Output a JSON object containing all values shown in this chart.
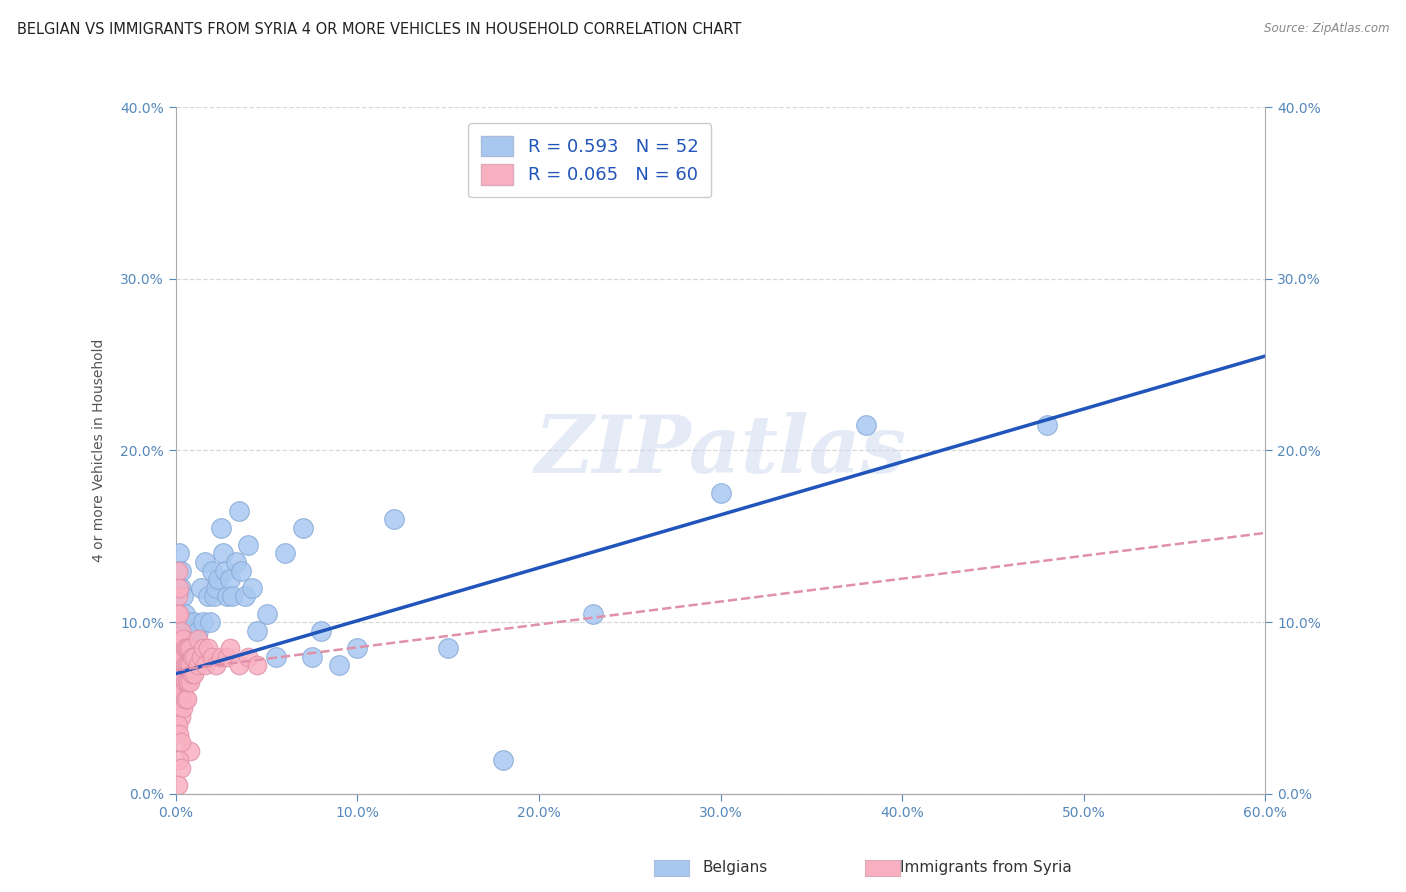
{
  "title": "BELGIAN VS IMMIGRANTS FROM SYRIA 4 OR MORE VEHICLES IN HOUSEHOLD CORRELATION CHART",
  "source": "Source: ZipAtlas.com",
  "ylabel_label": "4 or more Vehicles in Household",
  "xlabel_belgians": "Belgians",
  "xlabel_syria": "Immigrants from Syria",
  "xmin": 0.0,
  "xmax": 0.6,
  "ymin": 0.0,
  "ymax": 0.4,
  "belgian_R": 0.593,
  "belgian_N": 52,
  "syria_R": 0.065,
  "syria_N": 60,
  "belgian_color": "#a8c8f0",
  "syria_color": "#f8b0c0",
  "regression_blue": "#2255bb",
  "regression_pink": "#e090a8",
  "watermark_text": "ZIPatlas",
  "grid_color": "#d8d8d8",
  "background_color": "#ffffff",
  "title_fontsize": 10.5,
  "axis_label_fontsize": 10,
  "tick_fontsize": 10,
  "legend_fontsize": 13,
  "tick_color": "#5588bb",
  "belgian_points": [
    [
      0.002,
      0.14
    ],
    [
      0.003,
      0.13
    ],
    [
      0.003,
      0.12
    ],
    [
      0.004,
      0.115
    ],
    [
      0.005,
      0.105
    ],
    [
      0.005,
      0.095
    ],
    [
      0.006,
      0.1
    ],
    [
      0.007,
      0.09
    ],
    [
      0.007,
      0.085
    ],
    [
      0.008,
      0.095
    ],
    [
      0.008,
      0.085
    ],
    [
      0.009,
      0.09
    ],
    [
      0.01,
      0.1
    ],
    [
      0.01,
      0.085
    ],
    [
      0.012,
      0.095
    ],
    [
      0.014,
      0.12
    ],
    [
      0.015,
      0.1
    ],
    [
      0.016,
      0.135
    ],
    [
      0.018,
      0.115
    ],
    [
      0.019,
      0.1
    ],
    [
      0.02,
      0.13
    ],
    [
      0.021,
      0.115
    ],
    [
      0.022,
      0.12
    ],
    [
      0.023,
      0.125
    ],
    [
      0.025,
      0.155
    ],
    [
      0.026,
      0.14
    ],
    [
      0.027,
      0.13
    ],
    [
      0.028,
      0.115
    ],
    [
      0.03,
      0.125
    ],
    [
      0.031,
      0.115
    ],
    [
      0.033,
      0.135
    ],
    [
      0.035,
      0.165
    ],
    [
      0.036,
      0.13
    ],
    [
      0.038,
      0.115
    ],
    [
      0.04,
      0.145
    ],
    [
      0.042,
      0.12
    ],
    [
      0.045,
      0.095
    ],
    [
      0.05,
      0.105
    ],
    [
      0.055,
      0.08
    ],
    [
      0.06,
      0.14
    ],
    [
      0.07,
      0.155
    ],
    [
      0.075,
      0.08
    ],
    [
      0.08,
      0.095
    ],
    [
      0.09,
      0.075
    ],
    [
      0.1,
      0.085
    ],
    [
      0.12,
      0.16
    ],
    [
      0.15,
      0.085
    ],
    [
      0.18,
      0.02
    ],
    [
      0.23,
      0.105
    ],
    [
      0.3,
      0.175
    ],
    [
      0.38,
      0.215
    ],
    [
      0.48,
      0.215
    ]
  ],
  "syria_points": [
    [
      0.001,
      0.13
    ],
    [
      0.001,
      0.115
    ],
    [
      0.001,
      0.105
    ],
    [
      0.002,
      0.12
    ],
    [
      0.002,
      0.105
    ],
    [
      0.002,
      0.09
    ],
    [
      0.002,
      0.08
    ],
    [
      0.002,
      0.07
    ],
    [
      0.002,
      0.06
    ],
    [
      0.002,
      0.05
    ],
    [
      0.003,
      0.095
    ],
    [
      0.003,
      0.085
    ],
    [
      0.003,
      0.075
    ],
    [
      0.003,
      0.065
    ],
    [
      0.003,
      0.055
    ],
    [
      0.003,
      0.045
    ],
    [
      0.004,
      0.09
    ],
    [
      0.004,
      0.08
    ],
    [
      0.004,
      0.07
    ],
    [
      0.004,
      0.06
    ],
    [
      0.004,
      0.05
    ],
    [
      0.005,
      0.085
    ],
    [
      0.005,
      0.075
    ],
    [
      0.005,
      0.065
    ],
    [
      0.005,
      0.055
    ],
    [
      0.006,
      0.085
    ],
    [
      0.006,
      0.075
    ],
    [
      0.006,
      0.065
    ],
    [
      0.006,
      0.055
    ],
    [
      0.007,
      0.085
    ],
    [
      0.007,
      0.075
    ],
    [
      0.007,
      0.065
    ],
    [
      0.008,
      0.085
    ],
    [
      0.008,
      0.075
    ],
    [
      0.008,
      0.065
    ],
    [
      0.008,
      0.025
    ],
    [
      0.009,
      0.08
    ],
    [
      0.009,
      0.07
    ],
    [
      0.01,
      0.08
    ],
    [
      0.01,
      0.07
    ],
    [
      0.012,
      0.09
    ],
    [
      0.012,
      0.075
    ],
    [
      0.014,
      0.08
    ],
    [
      0.015,
      0.085
    ],
    [
      0.016,
      0.075
    ],
    [
      0.018,
      0.085
    ],
    [
      0.02,
      0.08
    ],
    [
      0.022,
      0.075
    ],
    [
      0.025,
      0.08
    ],
    [
      0.028,
      0.08
    ],
    [
      0.03,
      0.085
    ],
    [
      0.035,
      0.075
    ],
    [
      0.04,
      0.08
    ],
    [
      0.045,
      0.075
    ],
    [
      0.001,
      0.04
    ],
    [
      0.002,
      0.035
    ],
    [
      0.002,
      0.02
    ],
    [
      0.003,
      0.03
    ],
    [
      0.003,
      0.015
    ],
    [
      0.001,
      0.005
    ]
  ],
  "blue_line_x0": 0.0,
  "blue_line_y0": 0.07,
  "blue_line_x1": 0.6,
  "blue_line_y1": 0.255,
  "pink_line_x0": 0.0,
  "pink_line_y0": 0.072,
  "pink_line_x1": 0.6,
  "pink_line_y1": 0.152
}
